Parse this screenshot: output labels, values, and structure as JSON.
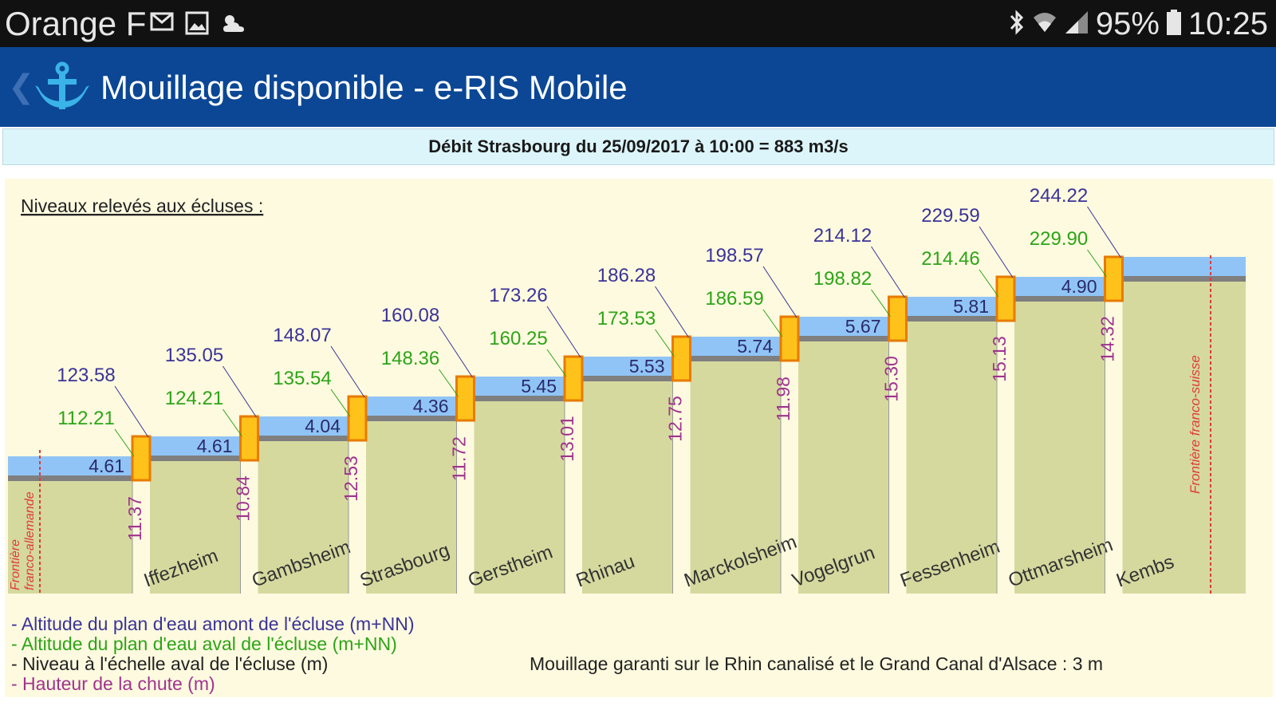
{
  "status_bar": {
    "carrier": "Orange F",
    "battery": "95%",
    "time": "10:25",
    "icons": [
      "mail-icon",
      "image-icon",
      "weather-icon",
      "bluetooth-icon",
      "wifi-icon",
      "signal-icon",
      "battery-icon"
    ]
  },
  "app_bar": {
    "title": "Mouillage disponible - e-RIS Mobile",
    "colors": {
      "background": "#0b4795",
      "anchor": "#3ab3e8"
    }
  },
  "banner": {
    "text": "Débit Strasbourg du 25/09/2017 à 10:00 = 883 m3/s"
  },
  "chart": {
    "heading": "Niveaux relevés aux écluses :",
    "border_left_label": [
      "Frontière",
      "franco-allemande"
    ],
    "border_right_label": "Frontière franco-suisse",
    "colors": {
      "upstream": "#3b3399",
      "downstream": "#2da418",
      "gauge": "#222222",
      "drop": "#a0338f",
      "water": "#90c4f6",
      "ground": "#d5d99e",
      "lock": "#ffc21a",
      "border": "#e23a3a"
    }
  },
  "chart_data": {
    "type": "table",
    "locks": [
      {
        "name": "Iffezheim",
        "upstream": "123.58",
        "downstream": "112.21",
        "drop": "11.37"
      },
      {
        "name": "Gambsheim",
        "upstream": "135.05",
        "downstream": "124.21",
        "drop": "10.84"
      },
      {
        "name": "Strasbourg",
        "upstream": "148.07",
        "downstream": "135.54",
        "drop": "12.53"
      },
      {
        "name": "Gerstheim",
        "upstream": "160.08",
        "downstream": "148.36",
        "drop": "11.72"
      },
      {
        "name": "Rhinau",
        "upstream": "173.26",
        "downstream": "160.25",
        "drop": "13.01"
      },
      {
        "name": "Marckolsheim",
        "upstream": "186.28",
        "downstream": "173.53",
        "drop": "12.75"
      },
      {
        "name": "Vogelgrun",
        "upstream": "198.57",
        "downstream": "186.59",
        "drop": "11.98"
      },
      {
        "name": "Fessenheim",
        "upstream": "214.12",
        "downstream": "198.82",
        "drop": "15.30"
      },
      {
        "name": "Ottmarsheim",
        "upstream": "229.59",
        "downstream": "214.46",
        "drop": "15.13"
      },
      {
        "name": "Kembs",
        "upstream": "244.22",
        "downstream": "229.90",
        "drop": "14.32"
      }
    ],
    "gauge_levels": [
      "4.61",
      "4.61",
      "4.04",
      "4.36",
      "5.45",
      "5.53",
      "5.74",
      "5.67",
      "5.81",
      "4.90"
    ]
  },
  "legend": {
    "items": [
      "- Altitude du plan d'eau amont de l'écluse (m+NN)",
      "- Altitude du plan d'eau aval de l'écluse (m+NN)",
      "- Niveau à l'échelle aval de l'écluse (m)",
      "- Hauteur de la chute (m)"
    ],
    "guarantee": "Mouillage garanti sur le Rhin canalisé et le Grand Canal d'Alsace : 3 m"
  }
}
